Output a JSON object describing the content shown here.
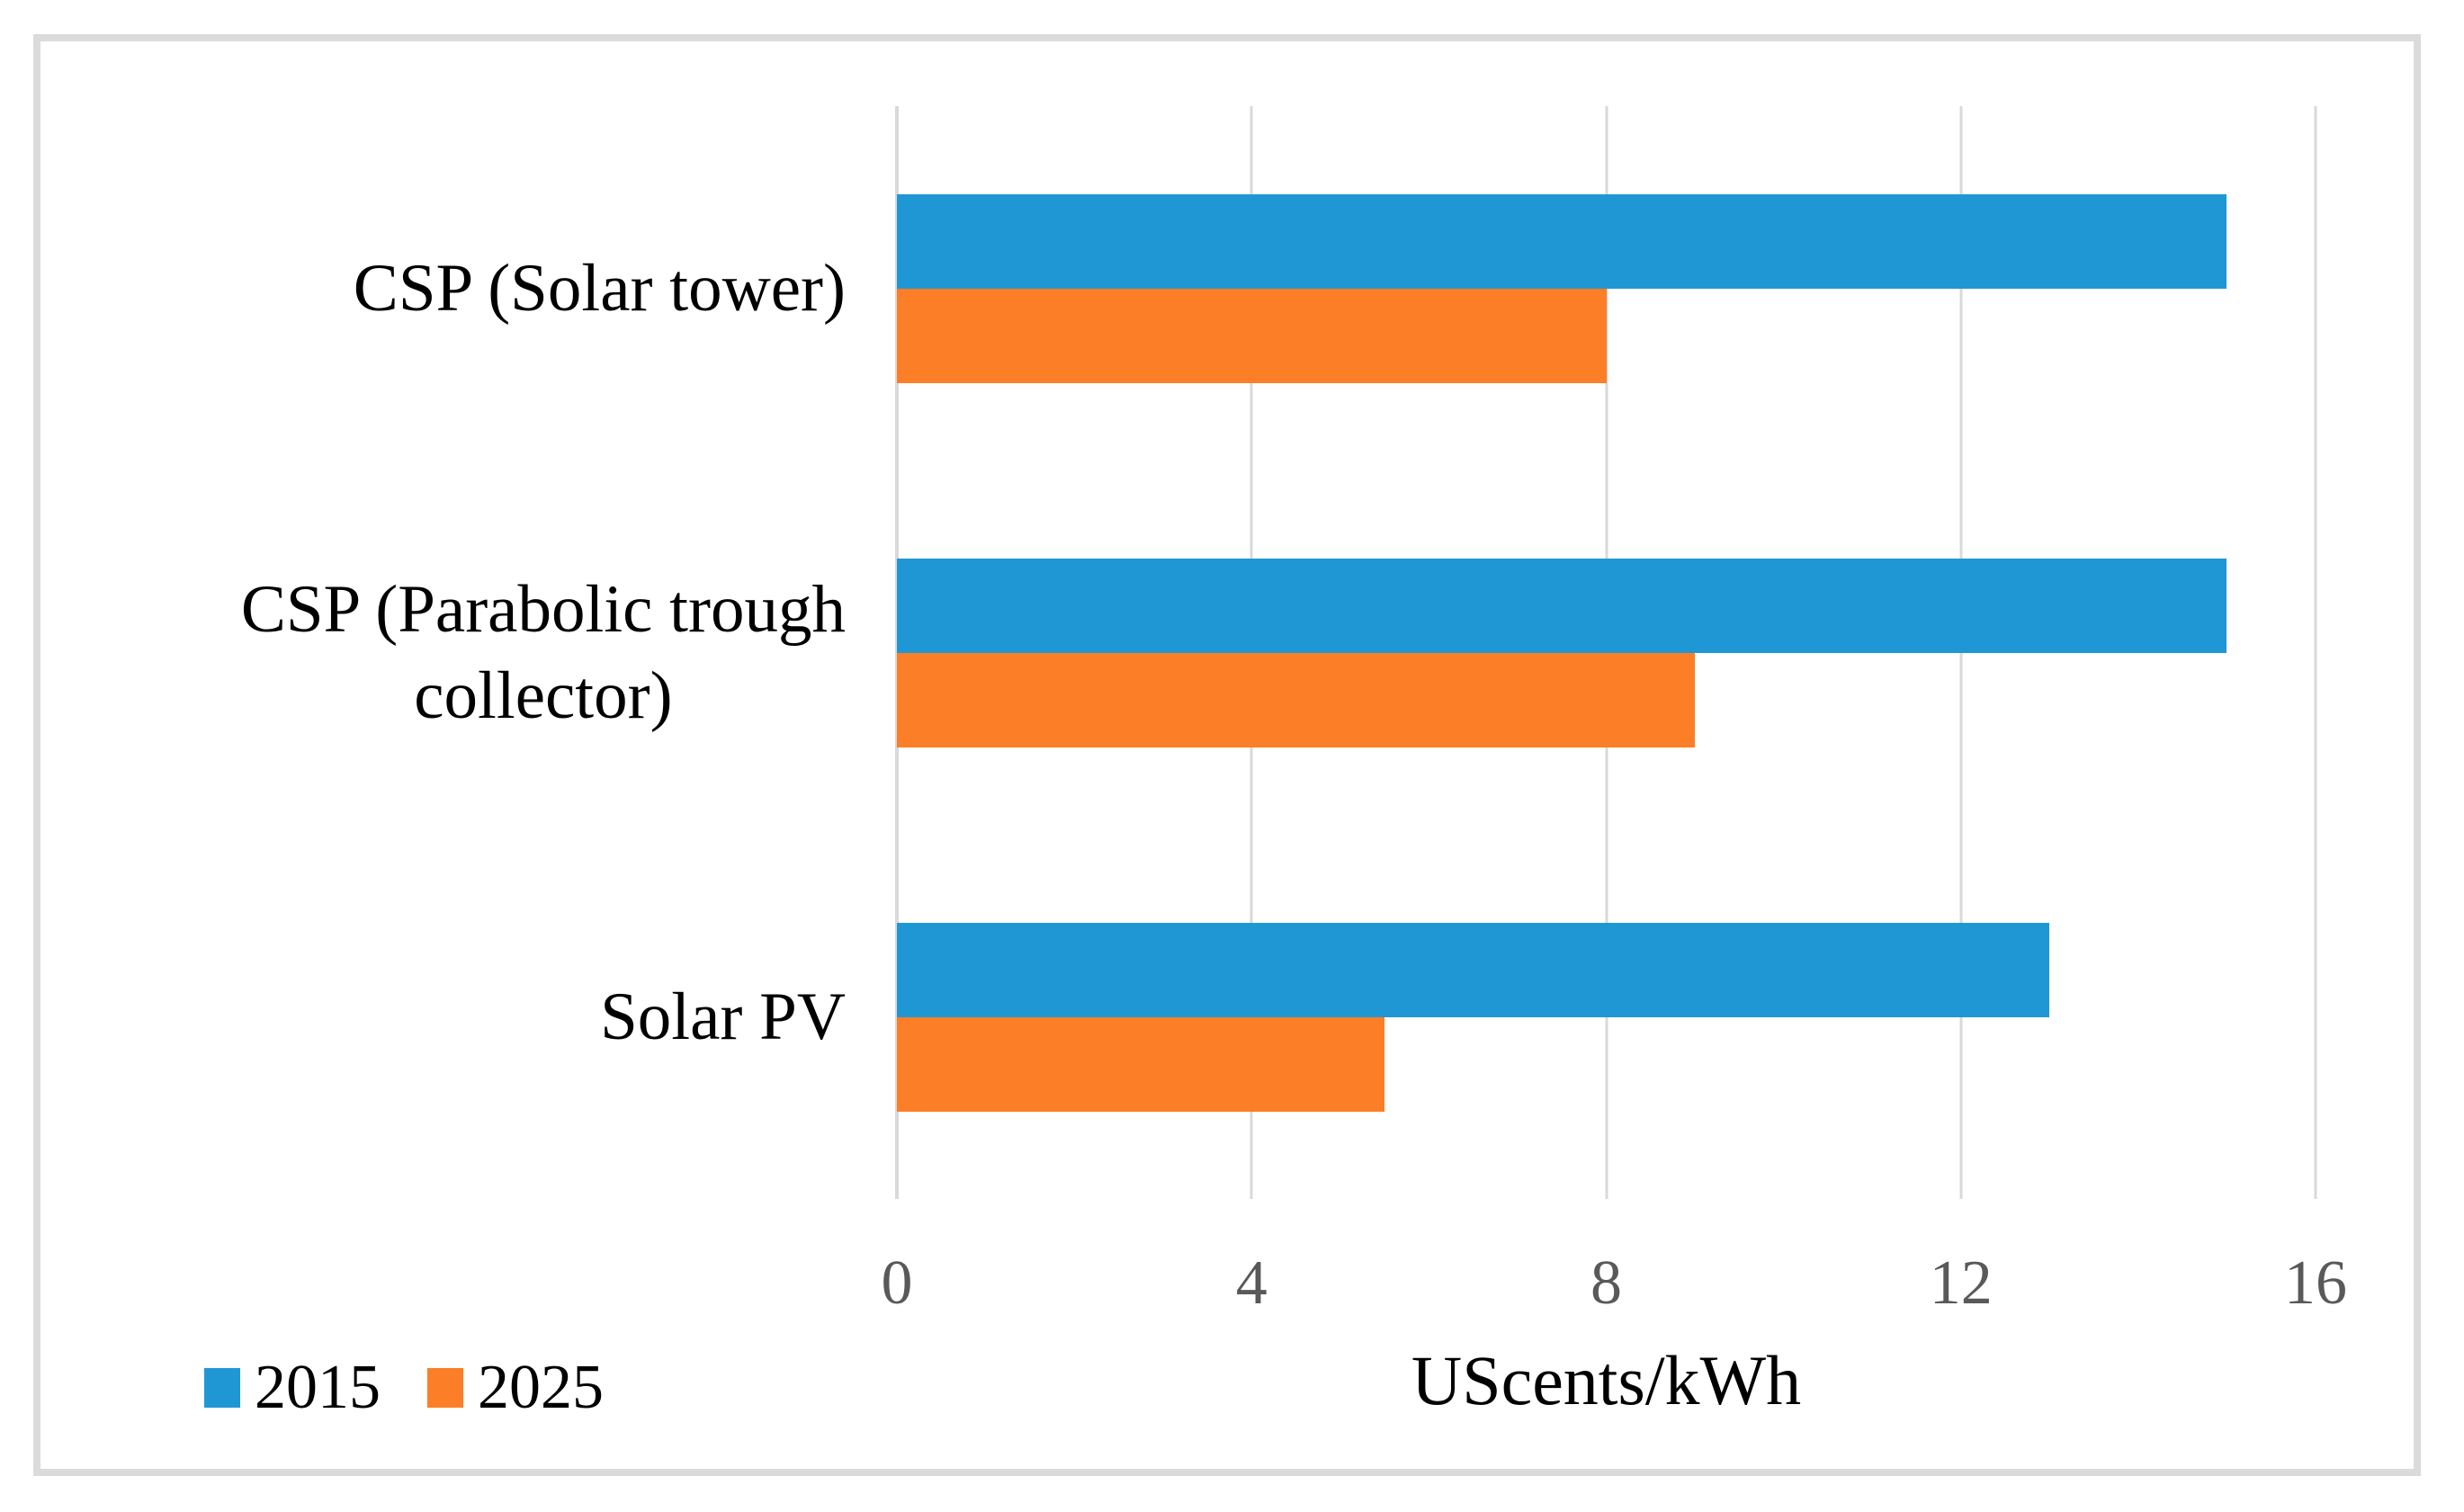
{
  "figure": {
    "background": "#FFFFFF",
    "frame_border_color": "#DBDBDB",
    "gridline_color": "#D9D9D9",
    "tick_text_color": "#595959",
    "text_color": "#000000"
  },
  "chart_data": {
    "type": "bar",
    "orientation": "horizontal",
    "title": "",
    "xlabel": "UScents/kWh",
    "ylabel": "",
    "xlim": [
      0,
      16
    ],
    "xticks": [
      "0",
      "4",
      "8",
      "12",
      "16"
    ],
    "xtick_values": [
      0,
      4,
      8,
      12,
      16
    ],
    "grid": "vertical-gridlines-on",
    "legend_position": "bottom-left",
    "categories": [
      "CSP (Solar tower)",
      "CSP (Parabolic trough\ncollector)",
      "Solar PV"
    ],
    "series": [
      {
        "name": "2015",
        "color": "#2097D5",
        "values": [
          15,
          15,
          13
        ]
      },
      {
        "name": "2025",
        "color": "#FC7E27",
        "values": [
          8,
          9,
          5.5
        ]
      }
    ]
  }
}
